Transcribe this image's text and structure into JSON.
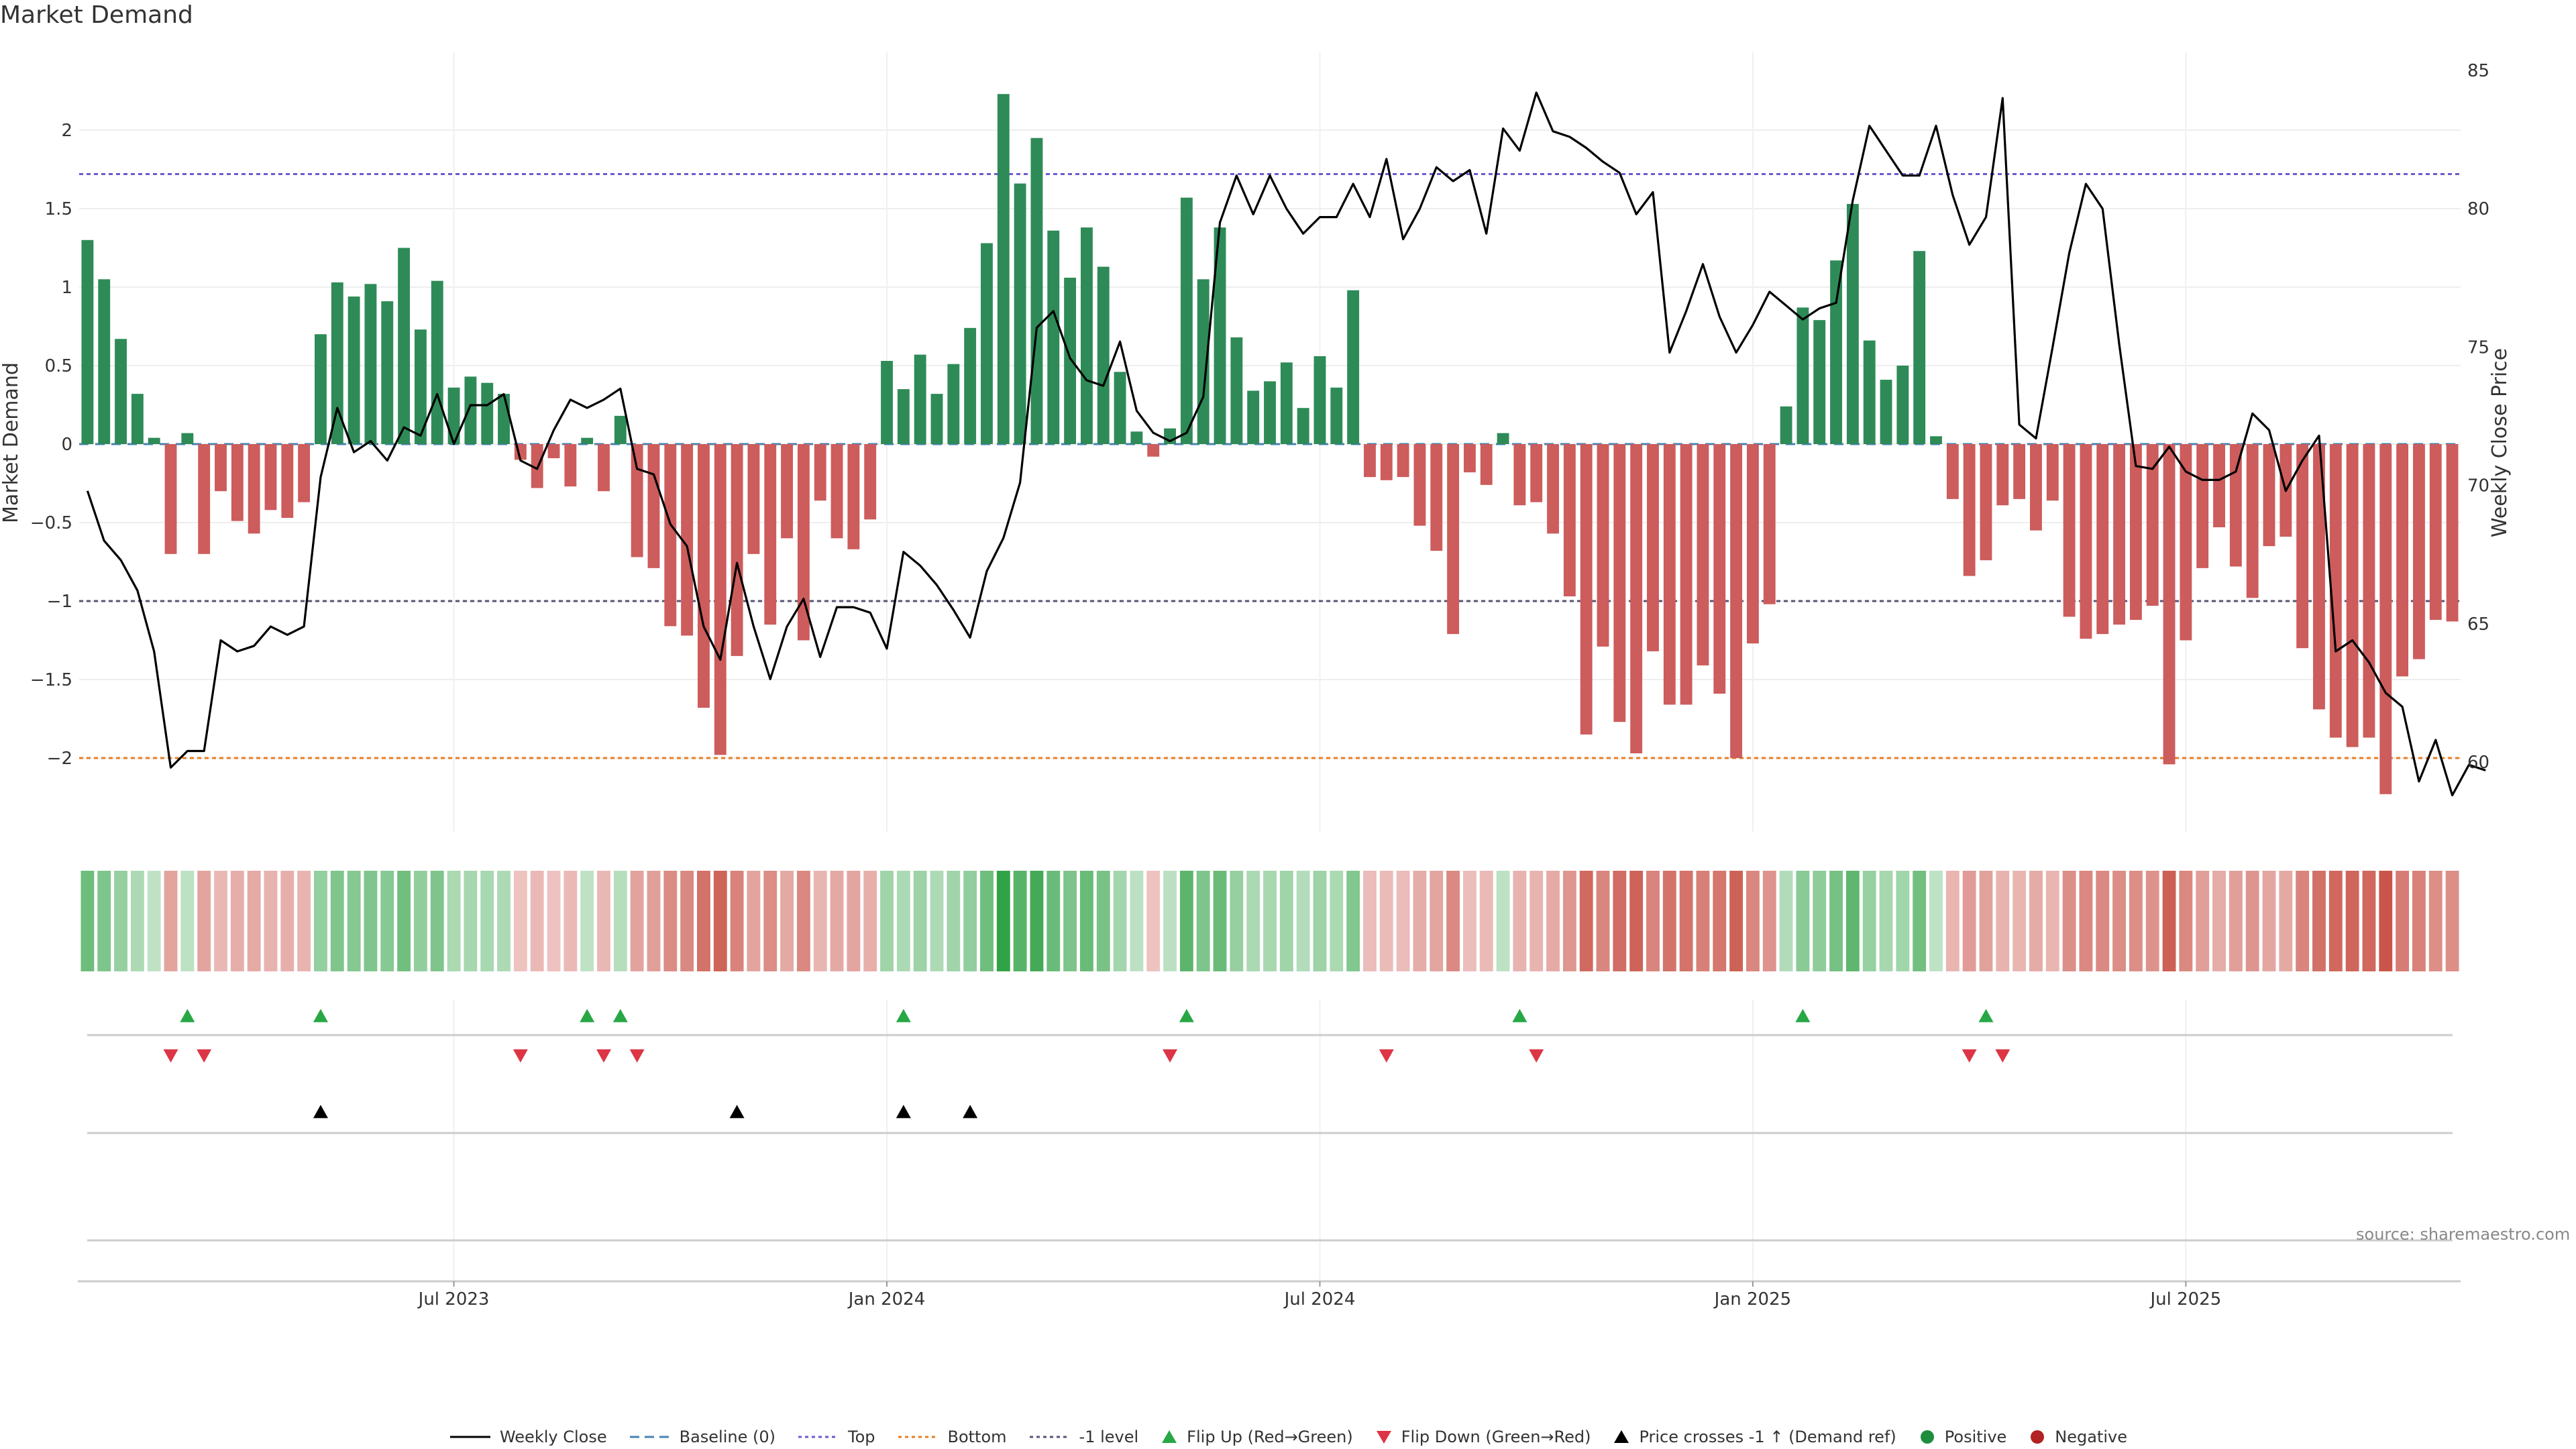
{
  "title": "Market Demand",
  "source": "source: sharemaestro.com",
  "colors": {
    "positive_bar": "#2e8b57",
    "negative_bar": "#cd5c5c",
    "price_line": "#000000",
    "top_line": "#6a5acd",
    "bottom_line": "#e67e22",
    "minus1_line": "#555577",
    "baseline": "#4682b4",
    "flip_up": "#28a745",
    "flip_down": "#dc3545",
    "cross": "#000000",
    "positive_dot": "#1e8e3e",
    "negative_dot": "#b22222"
  },
  "legend": [
    {
      "label": "Weekly Close",
      "kind": "line-solid",
      "color": "#000000"
    },
    {
      "label": "Baseline (0)",
      "kind": "line-dash",
      "color": "#4682b4"
    },
    {
      "label": "Top",
      "kind": "line-dot",
      "color": "#6a5acd"
    },
    {
      "label": "Bottom",
      "kind": "line-dot",
      "color": "#e67e22"
    },
    {
      "label": "-1 level",
      "kind": "line-dot",
      "color": "#555577"
    },
    {
      "label": "Flip Up (Red→Green)",
      "kind": "tri-up",
      "color": "#28a745"
    },
    {
      "label": "Flip Down (Green→Red)",
      "kind": "tri-down",
      "color": "#dc3545"
    },
    {
      "label": "Price crosses -1 ↑ (Demand ref)",
      "kind": "tri-up",
      "color": "#000000"
    },
    {
      "label": "Positive",
      "kind": "dot",
      "color": "#1e8e3e"
    },
    {
      "label": "Negative",
      "kind": "dot",
      "color": "#b22222"
    }
  ],
  "chart_data": {
    "type": "bar",
    "title": "Market Demand",
    "ylabel": "Market Demand",
    "y2label": "Weekly Close Price",
    "ylim": [
      -2.5,
      2.5
    ],
    "y2lim": [
      58,
      85.6
    ],
    "yticks": [
      "2",
      "1.5",
      "1",
      "0.5",
      "0",
      "−0.5",
      "−1",
      "−1.5",
      "−2"
    ],
    "ytick_values": [
      2,
      1.5,
      1,
      0.5,
      0,
      -0.5,
      -1,
      -1.5,
      -2
    ],
    "y2ticks": [
      "85",
      "80",
      "75",
      "70",
      "65",
      "60"
    ],
    "y2tick_values": [
      85,
      80,
      75,
      70,
      65,
      60
    ],
    "xticks": [
      "Jul 2023",
      "Jan 2024",
      "Jul 2024",
      "Jan 2025",
      "Jul 2025"
    ],
    "xtick_weeks": [
      22,
      48,
      74,
      100,
      126
    ],
    "levels": {
      "top": 1.72,
      "bottom": -2.0,
      "minus_one": -1.0,
      "baseline": 0
    },
    "demand": [
      1.3,
      1.05,
      0.67,
      0.32,
      0.04,
      -0.7,
      0.07,
      -0.7,
      -0.3,
      -0.49,
      -0.57,
      -0.42,
      -0.47,
      -0.37,
      0.7,
      1.03,
      0.94,
      1.02,
      0.91,
      1.25,
      0.73,
      1.04,
      0.36,
      0.43,
      0.39,
      0.32,
      -0.1,
      -0.28,
      -0.09,
      -0.27,
      0.04,
      -0.3,
      0.18,
      -0.72,
      -0.79,
      -1.16,
      -1.22,
      -1.68,
      -1.98,
      -1.35,
      -0.7,
      -1.15,
      -0.6,
      -1.25,
      -0.36,
      -0.6,
      -0.67,
      -0.48,
      0.53,
      0.35,
      0.57,
      0.32,
      0.51,
      0.74,
      1.28,
      2.23,
      1.66,
      1.95,
      1.36,
      1.06,
      1.38,
      1.13,
      0.46,
      0.08,
      -0.08,
      0.1,
      1.57,
      1.05,
      1.38,
      0.68,
      0.34,
      0.4,
      0.52,
      0.23,
      0.56,
      0.36,
      0.98,
      -0.21,
      -0.23,
      -0.21,
      -0.52,
      -0.68,
      -1.21,
      -0.18,
      -0.26,
      0.07,
      -0.39,
      -0.37,
      -0.57,
      -0.97,
      -1.85,
      -1.29,
      -1.77,
      -1.97,
      -1.32,
      -1.66,
      -1.66,
      -1.41,
      -1.59,
      -2.0,
      -1.27,
      -1.02,
      0.24,
      0.87,
      0.79,
      1.17,
      1.53,
      0.66,
      0.41,
      0.5,
      1.23,
      0.05,
      -0.35,
      -0.84,
      -0.74,
      -0.39,
      -0.35,
      -0.55,
      -0.36,
      -1.1,
      -1.24,
      -1.21,
      -1.15,
      -1.12,
      -1.03,
      -2.04,
      -1.25,
      -0.79,
      -0.53,
      -0.78,
      -0.98,
      -0.65,
      -0.59,
      -1.3,
      -1.69,
      -1.87,
      -1.93,
      -1.87,
      -2.23,
      -1.48,
      -1.37,
      -1.12,
      -1.13
    ],
    "weekly_close": [
      69.8,
      68.0,
      67.3,
      66.2,
      64.0,
      59.8,
      60.4,
      60.4,
      64.4,
      64.0,
      64.2,
      64.9,
      64.6,
      64.9,
      70.3,
      72.8,
      71.2,
      71.6,
      70.9,
      72.1,
      71.8,
      73.3,
      71.5,
      72.9,
      72.9,
      73.3,
      70.9,
      70.6,
      72.0,
      73.1,
      72.8,
      73.1,
      73.5,
      70.6,
      70.4,
      68.6,
      67.8,
      64.9,
      63.7,
      67.2,
      64.9,
      63.0,
      64.9,
      65.9,
      63.8,
      65.6,
      65.6,
      65.4,
      64.1,
      67.6,
      67.1,
      66.4,
      65.5,
      64.5,
      66.9,
      68.1,
      70.1,
      75.7,
      76.3,
      74.6,
      73.8,
      73.6,
      75.2,
      72.7,
      71.9,
      71.6,
      71.9,
      73.2,
      79.5,
      81.2,
      79.8,
      81.2,
      80.0,
      79.1,
      79.7,
      79.7,
      80.9,
      79.7,
      81.8,
      78.9,
      80.0,
      81.5,
      81.0,
      81.4,
      79.1,
      82.9,
      82.1,
      84.2,
      82.8,
      82.6,
      82.2,
      81.7,
      81.3,
      79.8,
      80.6,
      74.8,
      76.3,
      78.0,
      76.1,
      74.8,
      75.8,
      77.0,
      76.5,
      76.0,
      76.4,
      76.6,
      80.3,
      83.0,
      82.1,
      81.2,
      81.2,
      83.0,
      80.5,
      78.7,
      79.7,
      84.0,
      72.2,
      71.7,
      75.0,
      78.4,
      80.9,
      80.0,
      75.1,
      70.7,
      70.6,
      71.4,
      70.5,
      70.2,
      70.2,
      70.5,
      72.6,
      72.0,
      69.8,
      70.9,
      71.8,
      64.0,
      64.4,
      63.6,
      62.5,
      62.0,
      59.3,
      60.8,
      58.8,
      59.9,
      59.7
    ],
    "flip_up_weeks": [
      6,
      14,
      30,
      32,
      49,
      66,
      86,
      103,
      114
    ],
    "flip_down_weeks": [
      5,
      7,
      26,
      31,
      33,
      65,
      78,
      87,
      113,
      115
    ],
    "price_cross_weeks": [
      14,
      39,
      49,
      53
    ],
    "heat_strip": "diverging green-red intensity of demand per week"
  }
}
